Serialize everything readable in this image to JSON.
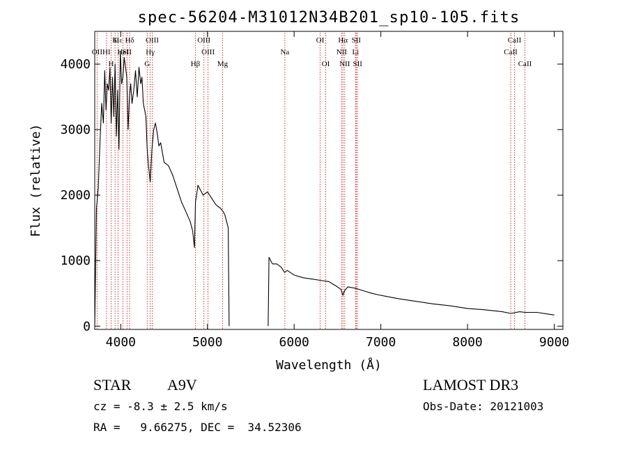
{
  "chart_data": {
    "type": "line",
    "title": "spec-56204-M31012N34B201_sp10-105.fits",
    "xlabel": "Wavelength (Å)",
    "ylabel": "Flux (relative)",
    "xlim": [
      3700,
      9100
    ],
    "ylim": [
      -50,
      4500
    ],
    "xticks": [
      4000,
      5000,
      6000,
      7000,
      8000,
      9000
    ],
    "yticks": [
      0,
      1000,
      2000,
      3000,
      4000
    ],
    "gap": [
      5250,
      5700
    ],
    "series": [
      {
        "name": "flux",
        "x": [
          3700,
          3720,
          3740,
          3760,
          3780,
          3800,
          3815,
          3830,
          3845,
          3860,
          3875,
          3890,
          3905,
          3920,
          3935,
          3950,
          3965,
          3980,
          3995,
          4010,
          4025,
          4040,
          4055,
          4070,
          4085,
          4100,
          4115,
          4130,
          4150,
          4170,
          4190,
          4210,
          4230,
          4245,
          4260,
          4275,
          4290,
          4305,
          4320,
          4340,
          4360,
          4380,
          4400,
          4420,
          4440,
          4460,
          4480,
          4500,
          4550,
          4600,
          4650,
          4700,
          4750,
          4800,
          4830,
          4850,
          4862,
          4875,
          4890,
          4910,
          4950,
          5000,
          5050,
          5100,
          5150,
          5180,
          5200,
          5220,
          5240,
          5250,
          5700,
          5710,
          5730,
          5750,
          5800,
          5850,
          5890,
          5920,
          6000,
          6100,
          6200,
          6300,
          6400,
          6450,
          6500,
          6540,
          6563,
          6580,
          6620,
          6700,
          6800,
          6900,
          7000,
          7200,
          7400,
          7600,
          7800,
          8000,
          8200,
          8400,
          8498,
          8542,
          8600,
          8662,
          8800,
          8900,
          9000
        ],
        "y": [
          0,
          1800,
          2100,
          2800,
          3400,
          3100,
          3900,
          3300,
          3700,
          3600,
          3950,
          3100,
          3800,
          3200,
          4000,
          2900,
          3600,
          2700,
          4200,
          3700,
          3800,
          4100,
          3950,
          3800,
          3000,
          3500,
          3700,
          3400,
          3600,
          3900,
          3500,
          3950,
          3700,
          3800,
          3400,
          3300,
          3200,
          2700,
          2450,
          2200,
          2700,
          3000,
          3100,
          2950,
          2750,
          2800,
          2650,
          2500,
          2450,
          2300,
          2100,
          1900,
          1750,
          1600,
          1450,
          1200,
          1900,
          2000,
          2150,
          2100,
          2000,
          2050,
          1950,
          1850,
          1800,
          1750,
          1700,
          1600,
          1500,
          0,
          0,
          1050,
          1000,
          950,
          950,
          900,
          820,
          850,
          780,
          740,
          720,
          700,
          680,
          640,
          600,
          560,
          470,
          540,
          600,
          580,
          540,
          500,
          470,
          420,
          380,
          340,
          310,
          270,
          250,
          220,
          195,
          205,
          220,
          210,
          210,
          190,
          170
        ]
      }
    ],
    "lines": [
      {
        "name": "Hε",
        "wave": 3970,
        "row": 1
      },
      {
        "name": "OII",
        "wave": 3727,
        "row": 2
      },
      {
        "name": "HI",
        "wave": 3835,
        "row": 2
      },
      {
        "name": "H",
        "wave": 3889,
        "row": 3
      },
      {
        "name": "K",
        "wave": 3934,
        "row": 1
      },
      {
        "name": "HeI",
        "wave": 4026,
        "row": 2
      },
      {
        "name": "Hδ",
        "wave": 4102,
        "row": 1
      },
      {
        "name": "SII",
        "wave": 4072,
        "row": 2
      },
      {
        "name": "OIII",
        "wave": 4363,
        "row": 1
      },
      {
        "name": "Hγ",
        "wave": 4340,
        "row": 2
      },
      {
        "name": "G",
        "wave": 4305,
        "row": 3
      },
      {
        "name": "Hβ",
        "wave": 4861,
        "row": 3
      },
      {
        "name": "OIII",
        "wave": 4959,
        "row": 1
      },
      {
        "name": "OIII",
        "wave": 5007,
        "row": 2
      },
      {
        "name": "Mg",
        "wave": 5175,
        "row": 3
      },
      {
        "name": "Na",
        "wave": 5893,
        "row": 2
      },
      {
        "name": "OI",
        "wave": 6300,
        "row": 1
      },
      {
        "name": "OI",
        "wave": 6364,
        "row": 3
      },
      {
        "name": "Hα",
        "wave": 6563,
        "row": 1
      },
      {
        "name": "NII",
        "wave": 6548,
        "row": 2
      },
      {
        "name": "NII",
        "wave": 6583,
        "row": 3
      },
      {
        "name": "SII",
        "wave": 6716,
        "row": 1
      },
      {
        "name": "Li",
        "wave": 6708,
        "row": 2
      },
      {
        "name": "SII",
        "wave": 6731,
        "row": 3
      },
      {
        "name": "CaII",
        "wave": 8542,
        "row": 1
      },
      {
        "name": "CaII",
        "wave": 8498,
        "row": 2
      },
      {
        "name": "CaII",
        "wave": 8662,
        "row": 3
      }
    ],
    "colors": {
      "line": "#c00000",
      "spectrum": "#000000"
    }
  },
  "info": {
    "objtype": "STAR",
    "subclass": "A9V",
    "cz": "cz = -8.3 ± 2.5 km/s",
    "radec": "RA =   9.66275, DEC =  34.52306",
    "survey": "LAMOST DR3",
    "obsdate": "Obs-Date: 20121003"
  }
}
